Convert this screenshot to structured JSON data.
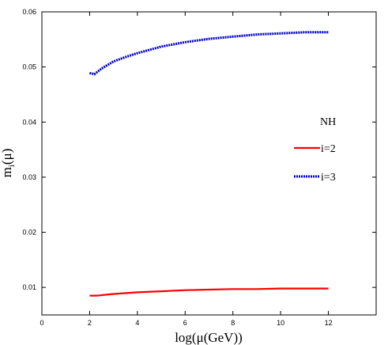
{
  "chart_data": {
    "type": "line",
    "xlabel": "log(μ(GeV))",
    "ylabel": "m_i(μ)",
    "ylabel_main": "m",
    "ylabel_sub": "i",
    "ylabel_tail": "(μ)",
    "xlim": [
      0,
      14
    ],
    "ylim": [
      0.005,
      0.06
    ],
    "xticks": [
      0,
      2,
      4,
      6,
      8,
      10,
      12
    ],
    "xtick_labels": [
      "0",
      "2",
      "4",
      "6",
      "8",
      "10",
      "12"
    ],
    "yticks": [
      0.01,
      0.02,
      0.03,
      0.04,
      0.05,
      0.06
    ],
    "ytick_labels": [
      "0.01",
      "0.02",
      "0.03",
      "0.04",
      "0.05",
      "0.06"
    ],
    "grid": false,
    "legend_title": "NH",
    "legend_position": "right",
    "series": [
      {
        "name": "i=2",
        "color": "#ff0000",
        "style": "solid",
        "x": [
          2.0,
          2.3,
          3.0,
          4.0,
          5.0,
          6.0,
          7.0,
          8.0,
          9.0,
          10.0,
          11.0,
          12.0
        ],
        "y": [
          0.0085,
          0.0085,
          0.0088,
          0.0091,
          0.0093,
          0.0095,
          0.0096,
          0.0097,
          0.0097,
          0.0098,
          0.0098,
          0.0098
        ]
      },
      {
        "name": "i=3",
        "color": "#0000cc",
        "style": "dotted",
        "x": [
          2.0,
          2.2,
          2.5,
          3.0,
          3.5,
          4.0,
          5.0,
          6.0,
          7.0,
          8.0,
          9.0,
          10.0,
          11.0,
          12.0
        ],
        "y": [
          0.0489,
          0.0487,
          0.0497,
          0.051,
          0.0518,
          0.0525,
          0.0537,
          0.0545,
          0.0551,
          0.0555,
          0.0559,
          0.0561,
          0.0563,
          0.0563
        ]
      }
    ]
  }
}
